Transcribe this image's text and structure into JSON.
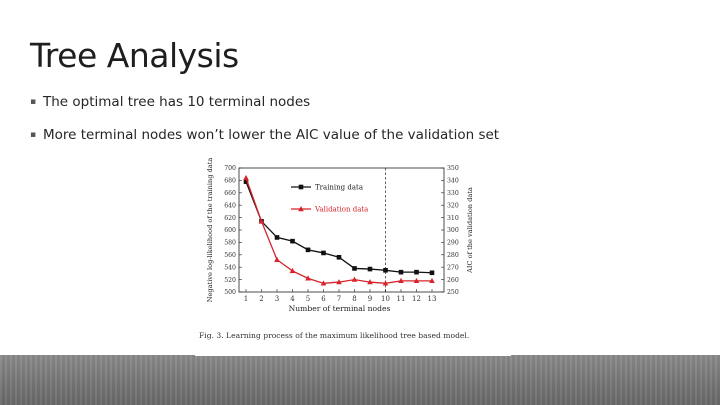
{
  "slide": {
    "title": "Tree Analysis",
    "bullets": [
      "The optimal tree has 10 terminal nodes",
      "More terminal nodes won’t lower the AIC value of the validation set"
    ],
    "bullet_symbol": "▪"
  },
  "figure": {
    "caption": "Fig. 3. Learning process of the maximum likelihood tree based model."
  },
  "chart_data": {
    "type": "line",
    "xlabel": "Number of terminal nodes",
    "x": [
      1,
      2,
      3,
      4,
      5,
      6,
      7,
      8,
      9,
      10,
      11,
      12,
      13
    ],
    "x_ticks": [
      "1",
      "2",
      "3",
      "4",
      "5",
      "6",
      "7",
      "8",
      "9",
      "10",
      "11",
      "12",
      "13"
    ],
    "y_left": {
      "label": "Negative log-likelihood of the training data",
      "range": [
        500,
        700
      ],
      "ticks": [
        "500",
        "520",
        "540",
        "560",
        "580",
        "600",
        "620",
        "640",
        "660",
        "680",
        "700"
      ]
    },
    "y_right": {
      "label": "AIC of the validation data",
      "range": [
        250,
        350
      ],
      "ticks": [
        "250",
        "260",
        "270",
        "280",
        "290",
        "300",
        "310",
        "320",
        "330",
        "340",
        "350"
      ]
    },
    "series": [
      {
        "name": "Training data",
        "axis": "left",
        "color": "#111111",
        "marker": "square",
        "values": [
          678,
          614,
          588,
          582,
          568,
          563,
          556,
          538,
          537,
          535,
          532,
          532,
          531
        ]
      },
      {
        "name": "Validation data",
        "axis": "right",
        "color": "#d8232a",
        "marker": "triangle",
        "values": [
          342,
          307,
          276,
          267,
          261,
          257,
          258,
          260,
          258,
          257,
          259,
          259,
          259
        ]
      }
    ],
    "vertical_reference_x": 10,
    "grid": false,
    "legend_position": "top-right"
  }
}
